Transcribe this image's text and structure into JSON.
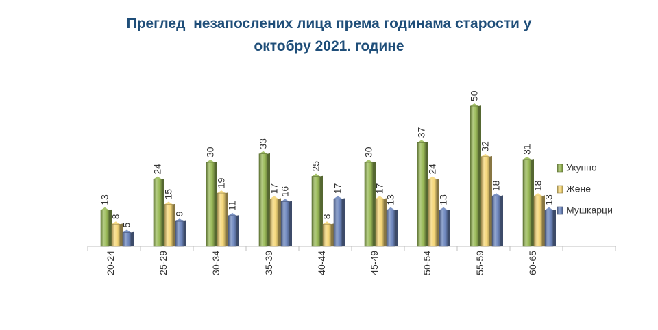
{
  "chart_data": {
    "type": "bar",
    "title_line1": "Преглед  незапослених лица према годинама старости у",
    "title_line2": "октобру 2021. године",
    "categories": [
      "20-24",
      "25-29",
      "30-34",
      "35-39",
      "40-44",
      "45-49",
      "50-54",
      "55-59",
      "60-65"
    ],
    "series": [
      {
        "name": "Укупно",
        "values": [
          13,
          24,
          30,
          33,
          25,
          30,
          37,
          50,
          31
        ],
        "color": "#9bbb59"
      },
      {
        "name": "Жене",
        "values": [
          8,
          15,
          19,
          17,
          8,
          17,
          24,
          32,
          18
        ],
        "color": "#f5d77a"
      },
      {
        "name": "Мушкарци",
        "values": [
          5,
          9,
          11,
          16,
          17,
          13,
          13,
          18,
          13
        ],
        "color": "#6f88bf"
      }
    ],
    "ylim": [
      0,
      50
    ],
    "grid": false,
    "legend": "right"
  }
}
